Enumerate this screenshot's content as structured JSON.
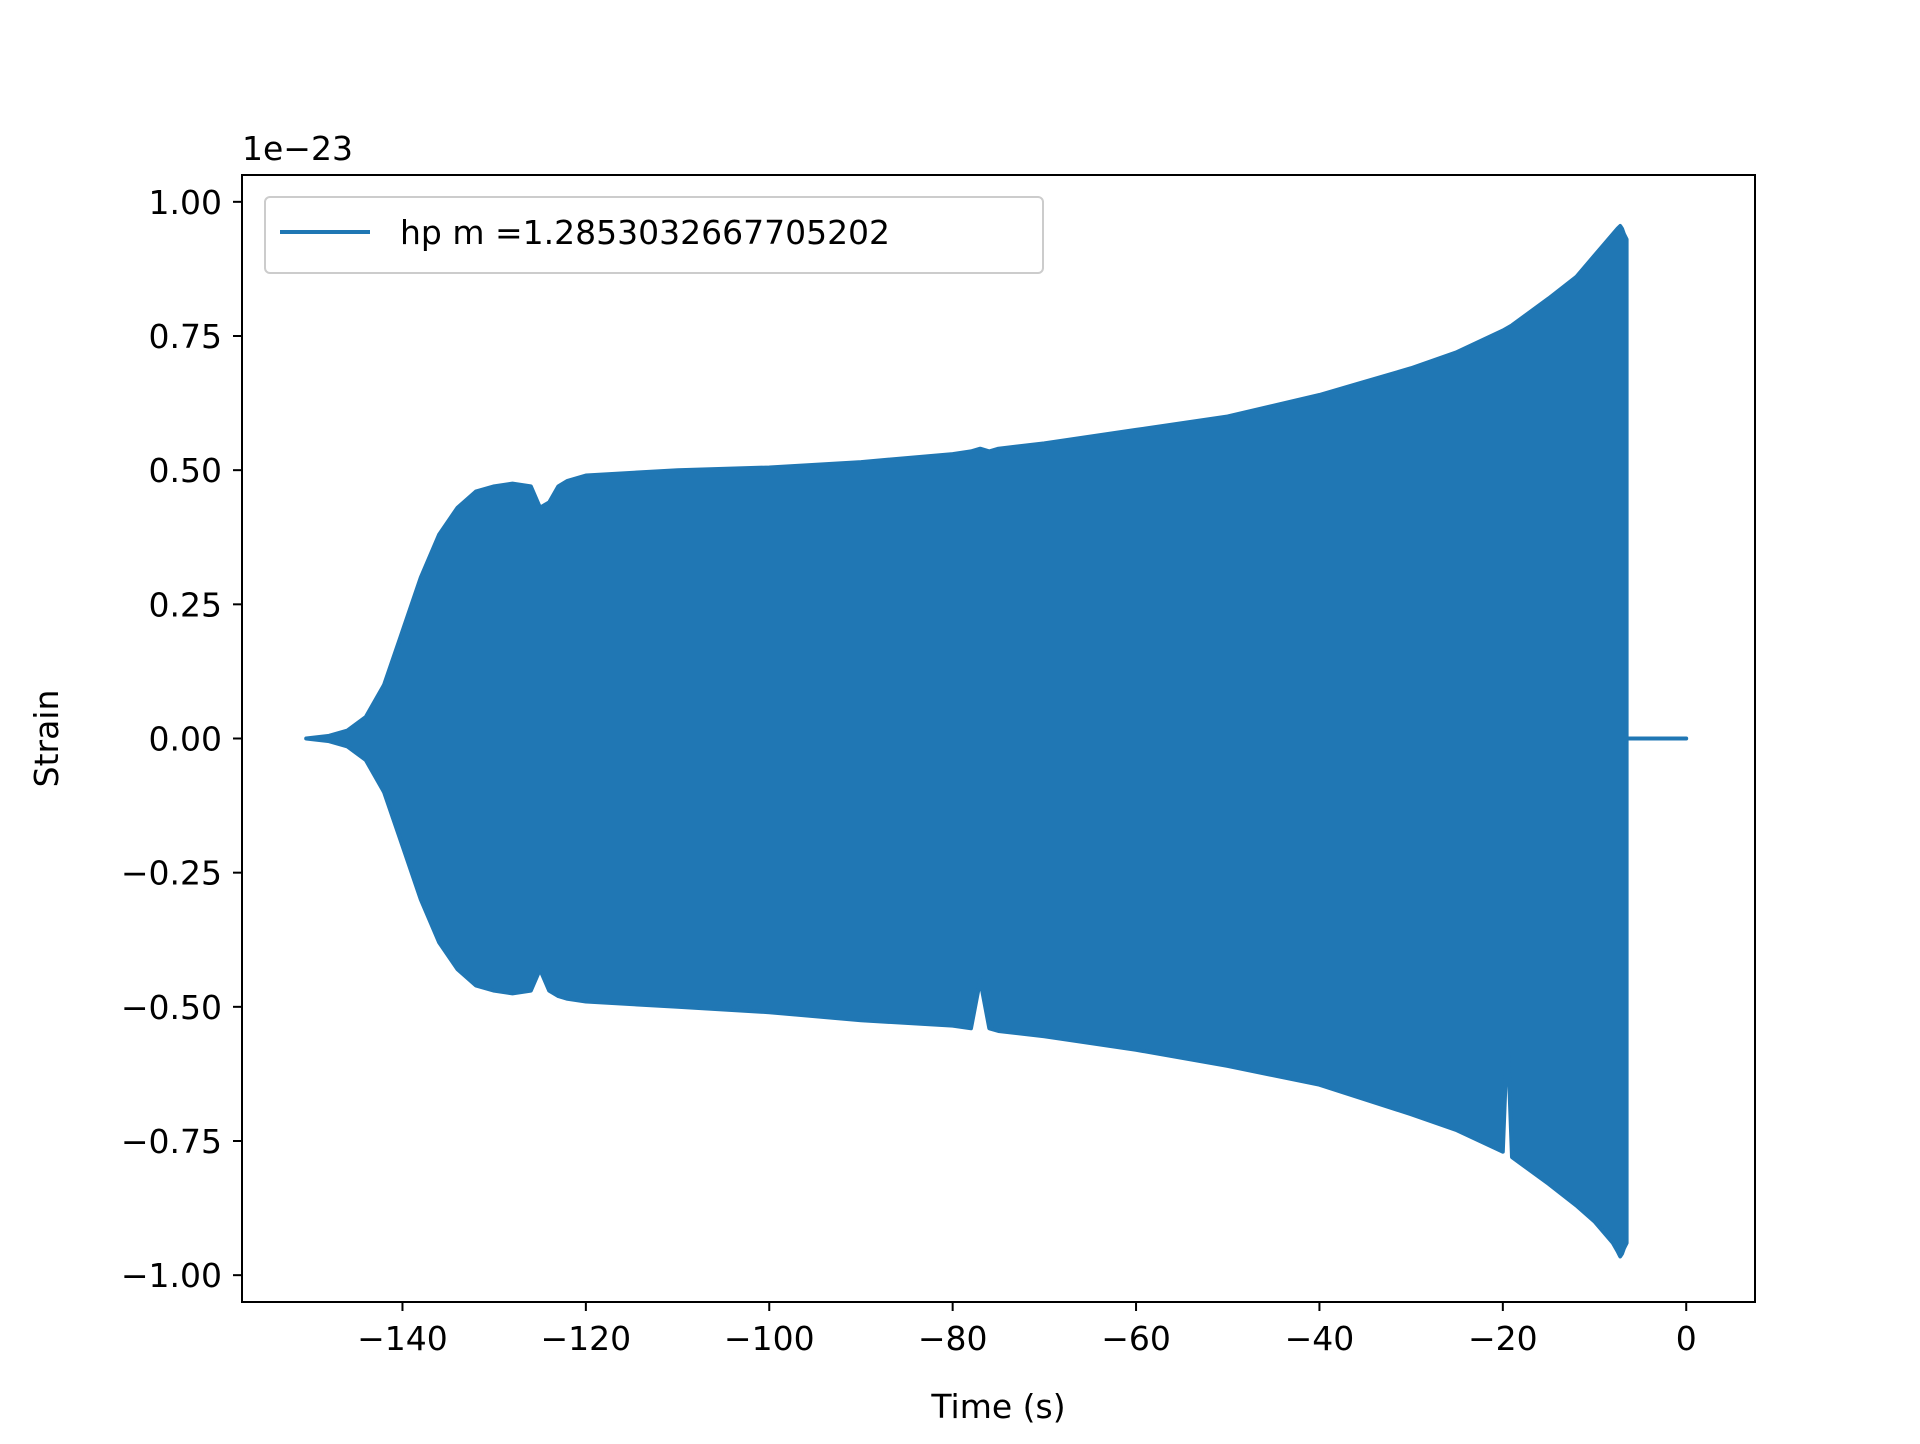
{
  "chart_data": {
    "type": "area",
    "title": "",
    "xlabel": "Time (s)",
    "ylabel": "Strain",
    "y_offset_label": "1e−23",
    "xlim": [
      -157.5,
      7.5
    ],
    "ylim": [
      -1.05,
      1.05
    ],
    "x_ticks": [
      -140,
      -120,
      -100,
      -80,
      -60,
      -40,
      -20,
      0
    ],
    "x_tick_labels": [
      "−140",
      "−120",
      "−100",
      "−80",
      "−60",
      "−40",
      "−20",
      "0"
    ],
    "y_ticks": [
      1.0,
      0.75,
      0.5,
      0.25,
      0.0,
      -0.25,
      -0.5,
      -0.75,
      -1.0
    ],
    "y_tick_labels": [
      "1.00",
      "0.75",
      "0.50",
      "0.25",
      "0.00",
      "−0.25",
      "−0.50",
      "−0.75",
      "−1.00"
    ],
    "grid": false,
    "legend": {
      "placement": "top-left"
    },
    "series": [
      {
        "name": "hp m =1.2853032667705202",
        "color": "#2077b4",
        "x": [
          -150.5,
          -148,
          -146,
          -144,
          -142,
          -140,
          -138,
          -136,
          -134,
          -132,
          -130,
          -128,
          -126,
          -125,
          -124,
          -123,
          -122,
          -120,
          -110,
          -100,
          -90,
          -80,
          -78,
          -77,
          -76,
          -75,
          -70,
          -60,
          -50,
          -40,
          -30,
          -25,
          -20,
          -19.5,
          -19,
          -15,
          -12,
          -10,
          -9,
          -8,
          -7.5,
          -7.2,
          -7.0,
          -6.8,
          -6.5,
          -6.5,
          -6,
          -4,
          -2,
          0
        ],
        "upper": [
          0.0,
          0.005,
          0.015,
          0.04,
          0.1,
          0.2,
          0.3,
          0.38,
          0.43,
          0.46,
          0.47,
          0.475,
          0.47,
          0.43,
          0.44,
          0.47,
          0.48,
          0.49,
          0.5,
          0.505,
          0.515,
          0.53,
          0.535,
          0.54,
          0.535,
          0.54,
          0.55,
          0.575,
          0.6,
          0.64,
          0.69,
          0.72,
          0.76,
          0.765,
          0.77,
          0.82,
          0.86,
          0.9,
          0.92,
          0.94,
          0.95,
          0.955,
          0.95,
          0.94,
          0.93,
          0.0,
          0.0,
          0.0,
          0.0,
          0.0
        ],
        "lower": [
          0.0,
          -0.005,
          -0.015,
          -0.04,
          -0.1,
          -0.2,
          -0.3,
          -0.38,
          -0.43,
          -0.46,
          -0.47,
          -0.475,
          -0.47,
          -0.43,
          -0.47,
          -0.48,
          -0.485,
          -0.49,
          -0.5,
          -0.51,
          -0.525,
          -0.535,
          -0.54,
          -0.45,
          -0.54,
          -0.545,
          -0.555,
          -0.58,
          -0.61,
          -0.645,
          -0.7,
          -0.73,
          -0.77,
          -0.55,
          -0.78,
          -0.83,
          -0.87,
          -0.9,
          -0.92,
          -0.94,
          -0.955,
          -0.965,
          -0.96,
          -0.95,
          -0.94,
          0.0,
          0.0,
          0.0,
          0.0,
          0.0
        ]
      }
    ]
  }
}
